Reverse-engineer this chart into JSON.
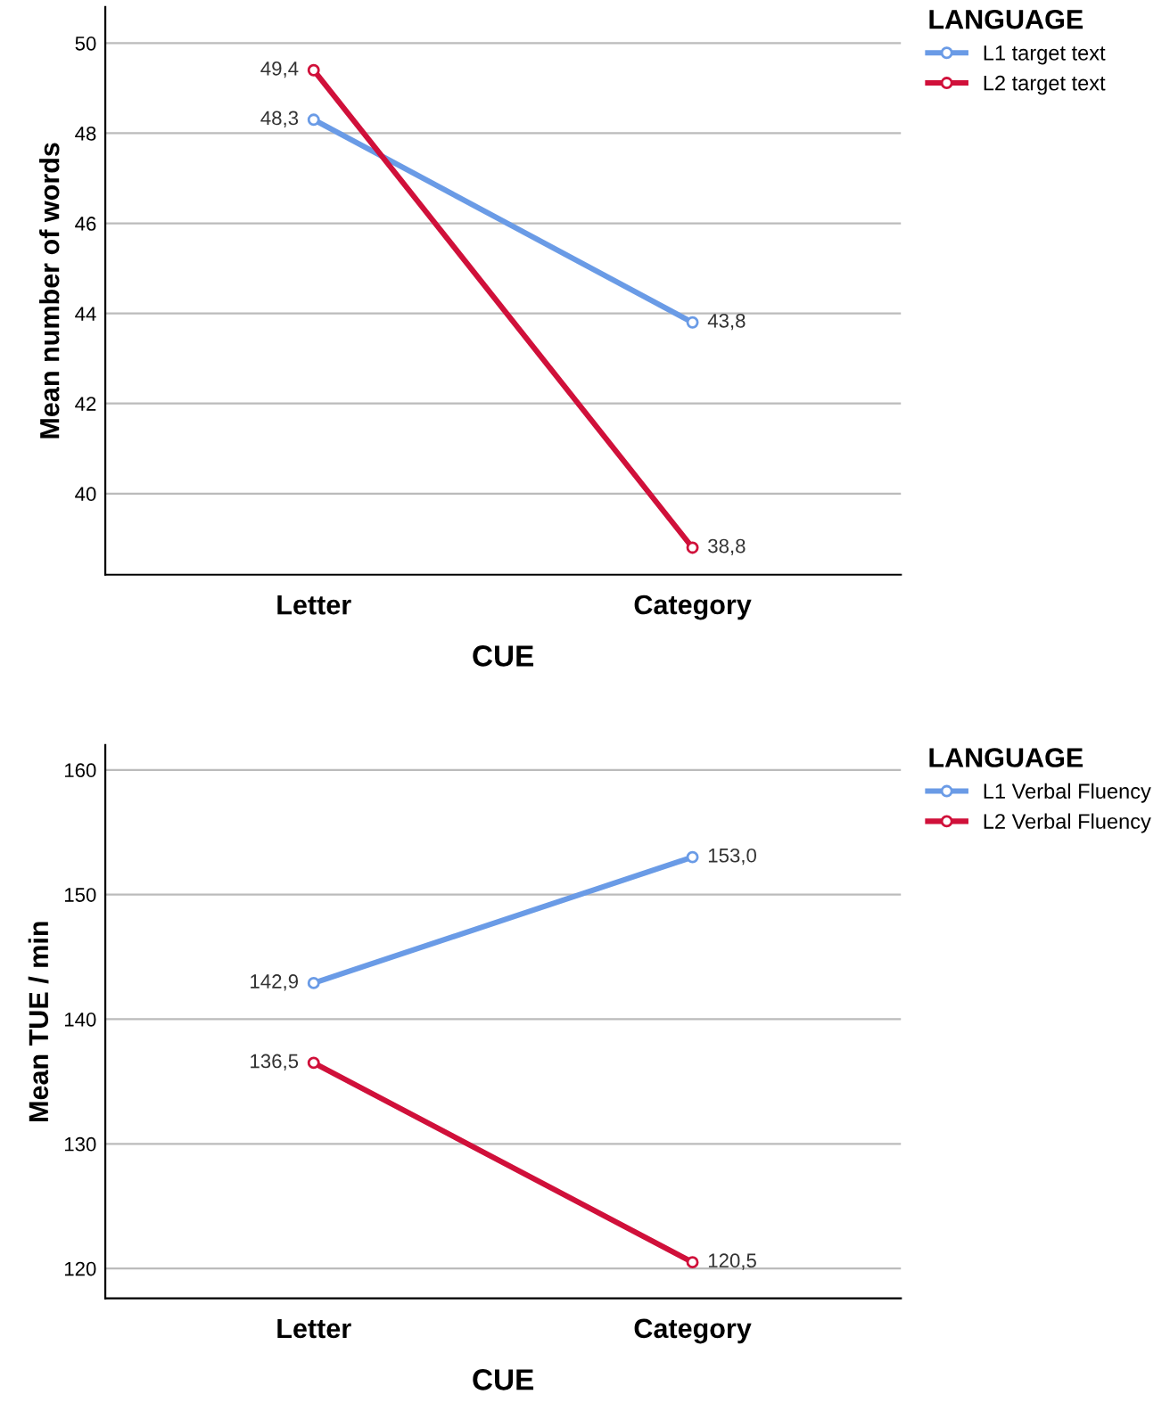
{
  "chart_data": [
    {
      "type": "line",
      "xlabel": "CUE",
      "ylabel": "Mean number of words",
      "legend_title": "LANGUAGE",
      "categories": [
        "Letter",
        "Category"
      ],
      "ylim": [
        38.2,
        50.8
      ],
      "yticks": [
        40,
        42,
        44,
        46,
        48,
        50
      ],
      "grid": "y",
      "legend": "right",
      "marker": "circle",
      "line_style": "solid",
      "series": [
        {
          "name": "L1 target text",
          "color": "#6a9be6",
          "values": [
            48.3,
            43.8
          ],
          "value_labels": [
            "48,3",
            "43,8"
          ]
        },
        {
          "name": "L2 target text",
          "color": "#d0103a",
          "values": [
            49.4,
            38.8
          ],
          "value_labels": [
            "49,4",
            "38,8"
          ]
        }
      ]
    },
    {
      "type": "line",
      "xlabel": "CUE",
      "ylabel": "Mean TUE / min",
      "legend_title": "LANGUAGE",
      "categories": [
        "Letter",
        "Category"
      ],
      "ylim": [
        117.6,
        162
      ],
      "yticks": [
        120,
        130,
        140,
        150,
        160
      ],
      "grid": "y",
      "legend": "right",
      "marker": "circle",
      "line_style": "solid",
      "series": [
        {
          "name": "L1 Verbal Fluency",
          "color": "#6a9be6",
          "values": [
            142.9,
            153.0
          ],
          "value_labels": [
            "142,9",
            "153,0"
          ]
        },
        {
          "name": "L2 Verbal Fluency",
          "color": "#d0103a",
          "values": [
            136.5,
            120.5
          ],
          "value_labels": [
            "136,5",
            "120,5"
          ]
        }
      ]
    }
  ]
}
